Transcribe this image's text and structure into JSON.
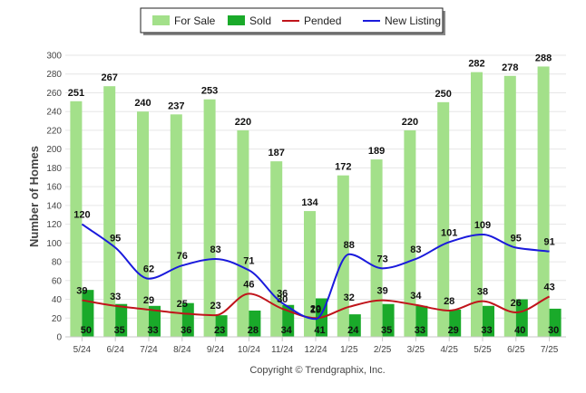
{
  "chart_data": {
    "type": "bar",
    "title": "",
    "xlabel": "",
    "ylabel": "Number of Homes",
    "ylim": [
      0,
      300
    ],
    "yticks": [
      0,
      20,
      40,
      60,
      80,
      100,
      120,
      140,
      160,
      180,
      200,
      220,
      240,
      260,
      280,
      300
    ],
    "grid": true,
    "legend_position": "top-center",
    "categories": [
      "5/24",
      "6/24",
      "7/24",
      "8/24",
      "9/24",
      "10/24",
      "11/24",
      "12/24",
      "1/25",
      "2/25",
      "3/25",
      "4/25",
      "5/25",
      "6/25",
      "7/25"
    ],
    "series": [
      {
        "name": "For Sale",
        "kind": "bar",
        "color": "#a3e08a",
        "values": [
          251,
          267,
          240,
          237,
          253,
          220,
          187,
          134,
          172,
          189,
          220,
          250,
          282,
          278,
          288
        ]
      },
      {
        "name": "Sold",
        "kind": "bar",
        "color": "#1aaa2a",
        "values": [
          50,
          35,
          33,
          36,
          23,
          28,
          34,
          41,
          24,
          35,
          33,
          29,
          33,
          40,
          30
        ]
      },
      {
        "name": "Pended",
        "kind": "line",
        "color": "#c0141b",
        "values": [
          39,
          33,
          29,
          25,
          23,
          46,
          30,
          20,
          32,
          39,
          34,
          28,
          38,
          26,
          43
        ]
      },
      {
        "name": "New Listing",
        "kind": "line",
        "color": "#1a1adc",
        "values": [
          120,
          95,
          62,
          76,
          83,
          71,
          36,
          19,
          88,
          73,
          83,
          101,
          109,
          95,
          91
        ]
      }
    ],
    "credit": "Copyright © Trendgraphix, Inc."
  }
}
